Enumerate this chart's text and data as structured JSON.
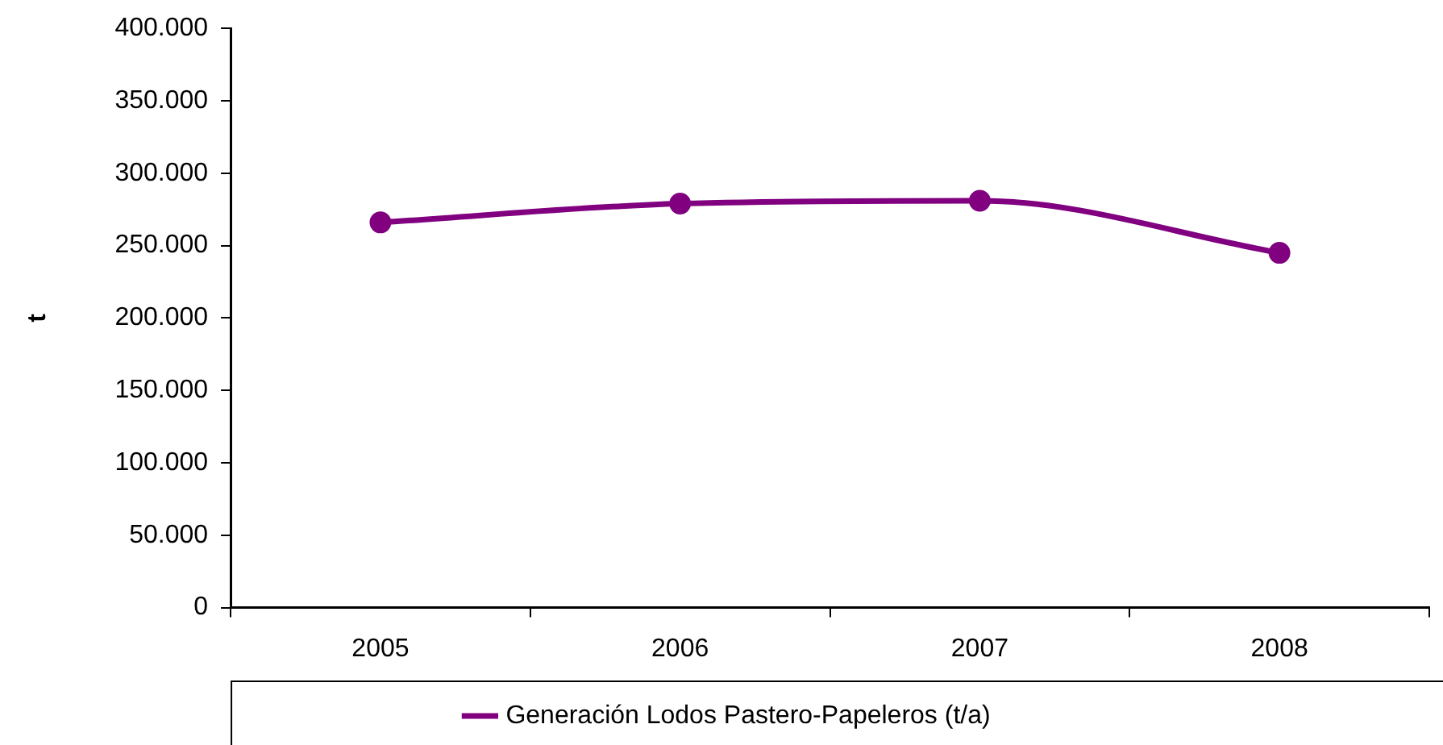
{
  "chart_data": {
    "type": "line",
    "ylabel": "t",
    "categories": [
      "2005",
      "2006",
      "2007",
      "2008"
    ],
    "series": [
      {
        "name": "Generación Lodos Pastero-Papeleros (t/a)",
        "color": "#800080",
        "values": [
          266000,
          279000,
          281000,
          245000
        ]
      }
    ],
    "ylim": [
      0,
      400000
    ],
    "yticks": [
      {
        "value": 0,
        "label": "0"
      },
      {
        "value": 50000,
        "label": "50.000"
      },
      {
        "value": 100000,
        "label": "100.000"
      },
      {
        "value": 150000,
        "label": "150.000"
      },
      {
        "value": 200000,
        "label": "200.000"
      },
      {
        "value": 250000,
        "label": "250.000"
      },
      {
        "value": 300000,
        "label": "300.000"
      },
      {
        "value": 350000,
        "label": "350.000"
      },
      {
        "value": 400000,
        "label": "400.000"
      }
    ],
    "grid": false,
    "legend": "bottom",
    "marker": "circle",
    "line_style": "solid"
  }
}
